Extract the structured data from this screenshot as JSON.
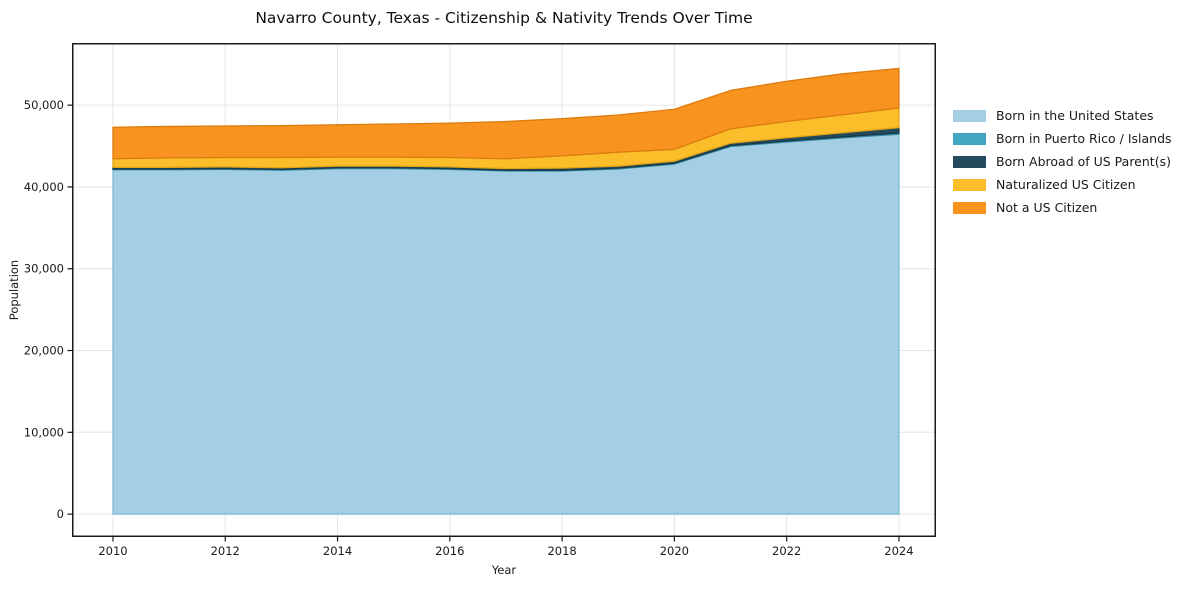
{
  "chart_data": {
    "type": "area",
    "stacked": true,
    "title": "Navarro County, Texas - Citizenship & Nativity Trends Over Time",
    "xlabel": "Year",
    "ylabel": "Population",
    "x": [
      2010,
      2011,
      2012,
      2013,
      2014,
      2015,
      2016,
      2017,
      2018,
      2019,
      2020,
      2021,
      2022,
      2023,
      2024
    ],
    "series": [
      {
        "name": "Born in the United States",
        "color": "#a3cee3",
        "edge": "#83b9d3",
        "values": [
          42100,
          42100,
          42150,
          42050,
          42250,
          42250,
          42150,
          41950,
          41950,
          42200,
          42800,
          44950,
          45500,
          46000,
          46450
        ]
      },
      {
        "name": "Born in Puerto Rico / Islands",
        "color": "#41a6c2",
        "edge": "#338ba6",
        "values": [
          100,
          100,
          100,
          100,
          100,
          100,
          100,
          100,
          100,
          100,
          100,
          100,
          120,
          130,
          150
        ]
      },
      {
        "name": "Born Abroad of US Parent(s)",
        "color": "#234a5d",
        "edge": "#1a3947",
        "values": [
          200,
          200,
          200,
          200,
          200,
          200,
          200,
          200,
          250,
          250,
          250,
          300,
          400,
          500,
          650
        ]
      },
      {
        "name": "Naturalized US Citizen",
        "color": "#fcbd2b",
        "edge": "#e2a416",
        "values": [
          1050,
          1150,
          1150,
          1250,
          1100,
          1100,
          1150,
          1200,
          1500,
          1700,
          1450,
          1750,
          2000,
          2200,
          2400
        ]
      },
      {
        "name": "Not a US Citizen",
        "color": "#f7931e",
        "edge": "#db7c10",
        "values": [
          3850,
          3850,
          3850,
          3900,
          3950,
          4050,
          4200,
          4550,
          4550,
          4550,
          4900,
          4700,
          4900,
          5000,
          4850
        ]
      }
    ],
    "x_ticks": [
      2010,
      2012,
      2014,
      2016,
      2018,
      2020,
      2022,
      2024
    ],
    "y_ticks": [
      0,
      10000,
      20000,
      30000,
      40000,
      50000
    ],
    "xlim": [
      2009.27,
      2024.66
    ],
    "ylim": [
      -2800,
      57600
    ],
    "grid": true,
    "grid_color": "#e6e6e6",
    "axis_color": "#1a1a1a",
    "legend_position": "right"
  }
}
